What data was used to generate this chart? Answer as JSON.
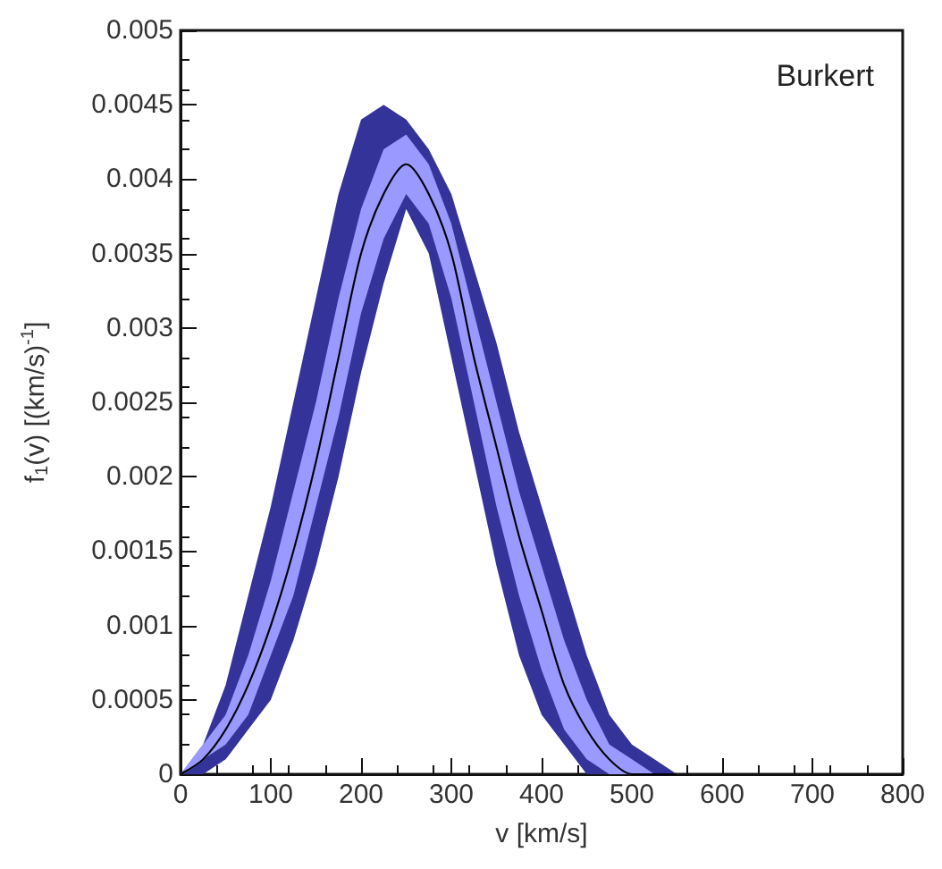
{
  "chart_data": {
    "type": "line",
    "xlabel": "v [km/s]",
    "ylabel": "f$_{1}$(v) [(km/s)$^{-1}$]",
    "annotations": [
      "Burkert"
    ],
    "x": [
      0,
      25,
      50,
      75,
      100,
      125,
      150,
      175,
      200,
      225,
      250,
      275,
      300,
      325,
      350,
      375,
      400,
      425,
      450,
      475,
      500,
      525,
      550
    ],
    "series": [
      {
        "color": "#333399",
        "values": [
          0,
          0.0001,
          0.0003,
          0.0006,
          0.001,
          0.0015,
          0.0021,
          0.0028,
          0.0035,
          0.0039,
          0.0041,
          0.0039,
          0.0035,
          0.0028,
          0.0022,
          0.0016,
          0.0011,
          0.0006,
          0.0003,
          0.0001,
          0,
          0,
          0
        ],
        "lower": [
          0,
          0,
          0.0001,
          0.0003,
          0.0005,
          0.0009,
          0.0014,
          0.002,
          0.0027,
          0.0033,
          0.0038,
          0.0035,
          0.0028,
          0.0021,
          0.0014,
          0.0008,
          0.0004,
          0.0002,
          0,
          0,
          0,
          0,
          0
        ],
        "upper": [
          0,
          0.0002,
          0.0006,
          0.0012,
          0.0018,
          0.0025,
          0.0032,
          0.0039,
          0.0044,
          0.0045,
          0.0044,
          0.0042,
          0.0039,
          0.0034,
          0.0029,
          0.0023,
          0.0018,
          0.0013,
          0.0008,
          0.0004,
          0.0002,
          0.0001,
          0
        ]
      },
      {
        "color": "#9999ff",
        "values": [
          0,
          0.0001,
          0.0003,
          0.0006,
          0.001,
          0.0015,
          0.0021,
          0.0028,
          0.0035,
          0.0039,
          0.0041,
          0.0039,
          0.0035,
          0.0028,
          0.0022,
          0.0016,
          0.0011,
          0.0006,
          0.0003,
          0.0001,
          0,
          0,
          0
        ],
        "lower": [
          0,
          0.0001,
          0.0002,
          0.0004,
          0.0008,
          0.0012,
          0.0018,
          0.0024,
          0.0031,
          0.0036,
          0.0039,
          0.0037,
          0.0032,
          0.0025,
          0.0018,
          0.0012,
          0.0007,
          0.0003,
          0.0001,
          0,
          0,
          0,
          0
        ],
        "upper": [
          0,
          0.0002,
          0.0004,
          0.0008,
          0.0013,
          0.0019,
          0.0025,
          0.0032,
          0.0038,
          0.0042,
          0.0043,
          0.0041,
          0.0037,
          0.0031,
          0.0025,
          0.0019,
          0.0014,
          0.0009,
          0.0005,
          0.0002,
          0.0001,
          0,
          0
        ]
      },
      {
        "color": "#000000",
        "values": [
          0,
          0.0001,
          0.0003,
          0.0006,
          0.001,
          0.0015,
          0.0021,
          0.0028,
          0.0035,
          0.0039,
          0.0041,
          0.0039,
          0.0035,
          0.0028,
          0.0022,
          0.0016,
          0.0011,
          0.0006,
          0.0003,
          0.0001,
          0,
          0,
          0
        ]
      }
    ],
    "xlim": [
      0,
      800
    ],
    "xticks": [
      0,
      100,
      200,
      300,
      400,
      500,
      600,
      700,
      800
    ],
    "ylim": [
      0,
      0.005
    ],
    "yticks": [
      0,
      0.0005,
      0.001,
      0.0015,
      0.002,
      0.0025,
      0.003,
      0.0035,
      0.004,
      0.0045,
      0.005
    ],
    "grid": false,
    "marker": "none",
    "line_style": "solid"
  }
}
